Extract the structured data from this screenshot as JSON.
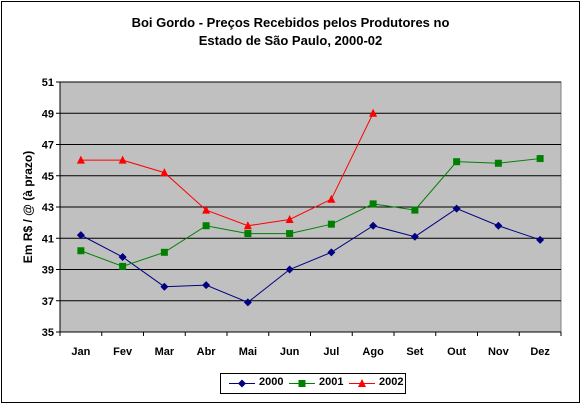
{
  "chart_data": {
    "type": "line",
    "title": [
      "Boi Gordo - Preços Recebidos pelos Produtores no",
      "Estado de São Paulo, 2000-02"
    ],
    "xlabel": "",
    "ylabel": "Em R$ / @ (à prazo)",
    "categories": [
      "Jan",
      "Fev",
      "Mar",
      "Abr",
      "Mai",
      "Jun",
      "Jul",
      "Ago",
      "Set",
      "Out",
      "Nov",
      "Dez"
    ],
    "ylim": [
      35,
      51
    ],
    "yticks": [
      35,
      37,
      39,
      41,
      43,
      45,
      47,
      49,
      51
    ],
    "grid": true,
    "legend_position": "bottom",
    "series": [
      {
        "name": "2000",
        "color": "#000080",
        "marker": "diamond",
        "values": [
          41.2,
          39.8,
          37.9,
          38.0,
          36.9,
          39.0,
          40.1,
          41.8,
          41.1,
          42.9,
          41.8,
          40.9
        ]
      },
      {
        "name": "2001",
        "color": "#008000",
        "marker": "square",
        "values": [
          40.2,
          39.2,
          40.1,
          41.8,
          41.3,
          41.3,
          41.9,
          43.2,
          42.8,
          45.9,
          45.8,
          46.1
        ]
      },
      {
        "name": "2002",
        "color": "#FF0000",
        "marker": "triangle",
        "values": [
          46.0,
          46.0,
          45.2,
          42.8,
          41.8,
          42.2,
          43.5,
          49.0,
          null,
          null,
          null,
          null
        ]
      }
    ]
  }
}
